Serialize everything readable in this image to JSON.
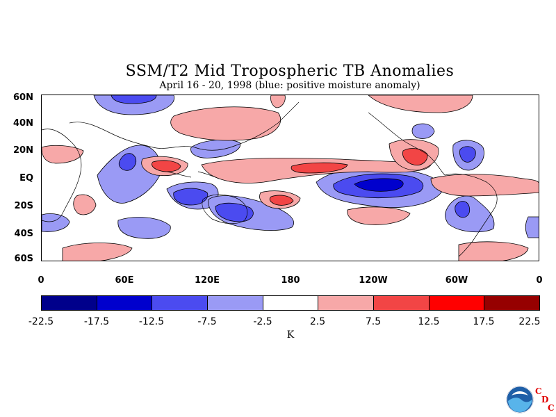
{
  "title": "SSM/T2 Mid Tropospheric TB Anomalies",
  "subtitle": "April 16 - 20, 1998 (blue: positive moisture anomaly)",
  "lat_labels": [
    "60N",
    "40N",
    "20N",
    "EQ",
    "20S",
    "40S",
    "60S"
  ],
  "lon_labels": [
    "0",
    "60E",
    "120E",
    "180",
    "120W",
    "60W",
    "0"
  ],
  "colorbar": {
    "colors": [
      "#00008b",
      "#0000cd",
      "#4b4bf0",
      "#9a9af5",
      "#ffffff",
      "#f7a8a8",
      "#f24545",
      "#ff0000",
      "#960000"
    ],
    "ticks": [
      "-22.5",
      "-17.5",
      "-12.5",
      "-7.5",
      "-2.5",
      "2.5",
      "7.5",
      "12.5",
      "17.5",
      "22.5"
    ],
    "units": "K"
  },
  "logo": {
    "name": "noaa-logo",
    "letters": [
      "C",
      "D",
      "C"
    ]
  }
}
